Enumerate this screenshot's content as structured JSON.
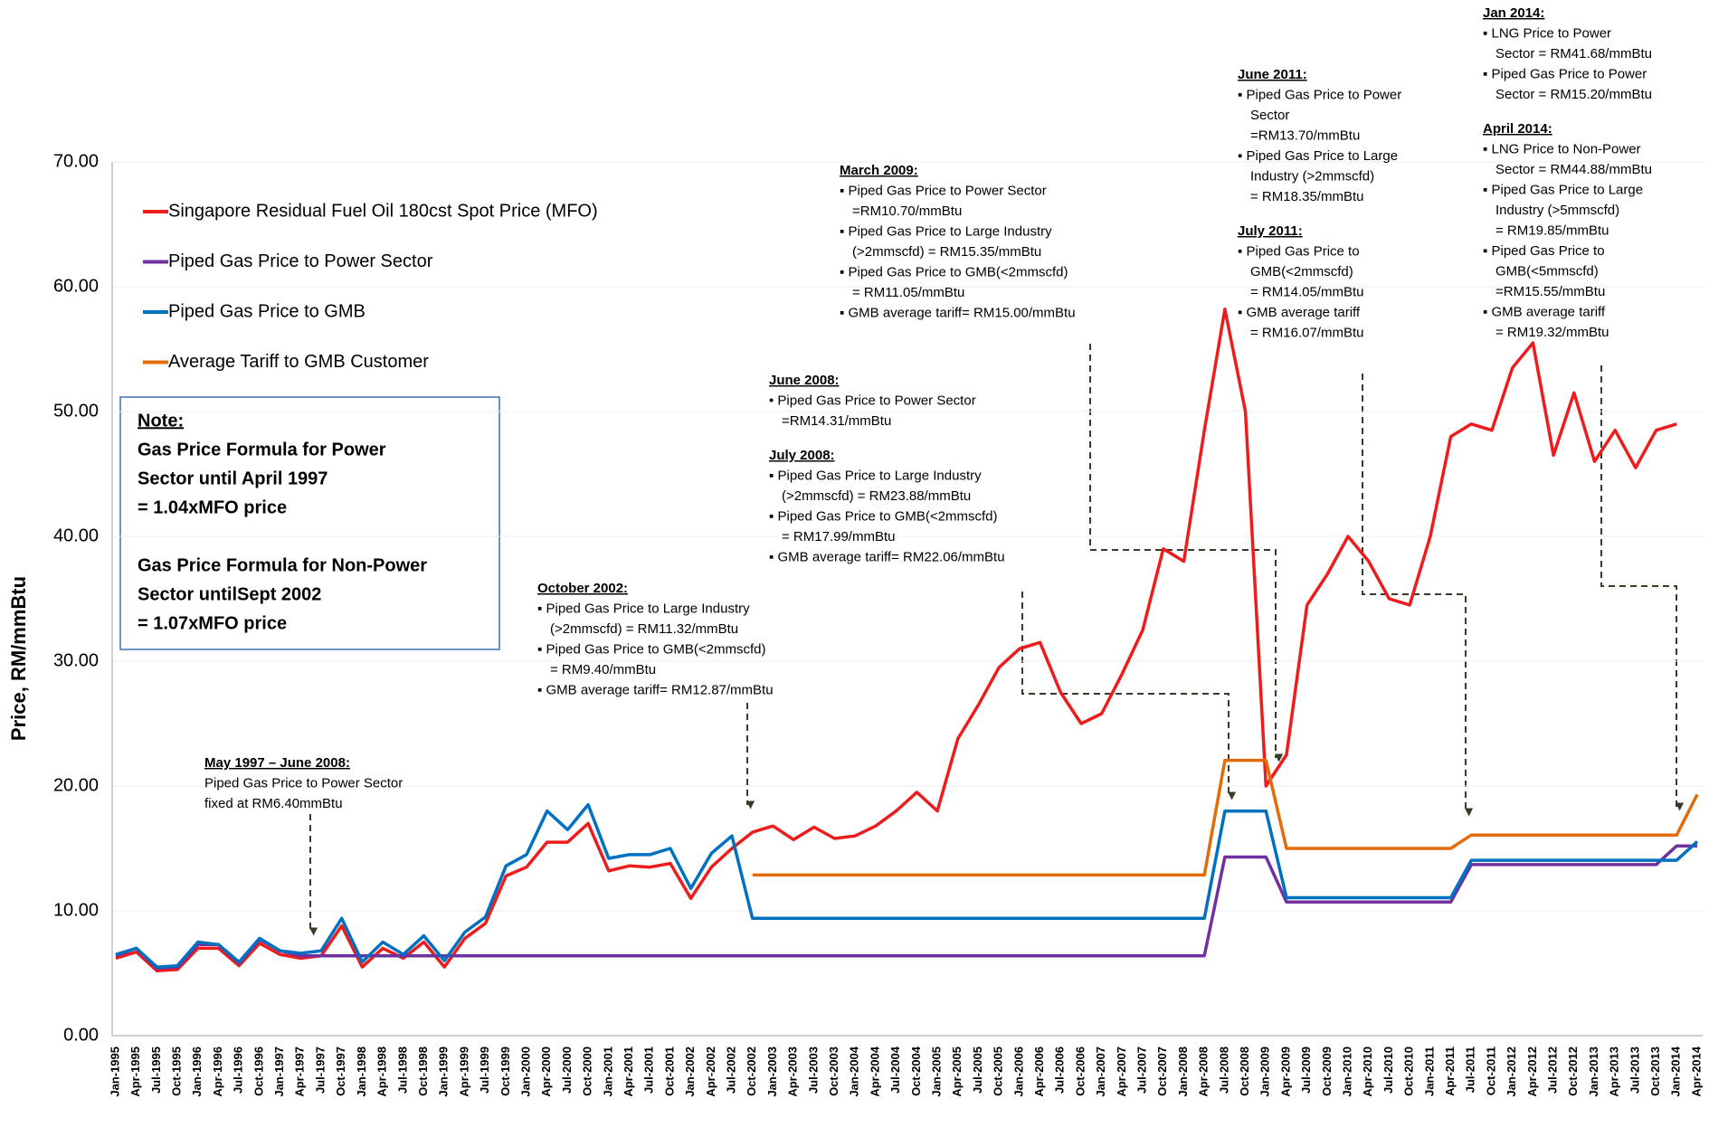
{
  "chart_data": {
    "type": "line",
    "y_label": "Price, RM/mmBtu",
    "categories": [
      "Jan-1995",
      "Apr-1995",
      "Jul-1995",
      "Oct-1995",
      "Jan-1996",
      "Apr-1996",
      "Jul-1996",
      "Oct-1996",
      "Jan-1997",
      "Apr-1997",
      "Jul-1997",
      "Oct-1997",
      "Jan-1998",
      "Apr-1998",
      "Jul-1998",
      "Oct-1998",
      "Jan-1999",
      "Apr-1999",
      "Jul-1999",
      "Oct-1999",
      "Jan-2000",
      "Apr-2000",
      "Jul-2000",
      "Oct-2000",
      "Jan-2001",
      "Apr-2001",
      "Jul-2001",
      "Oct-2001",
      "Jan-2002",
      "Apr-2002",
      "Jul-2002",
      "Oct-2002",
      "Jan-2003",
      "Apr-2003",
      "Jul-2003",
      "Oct-2003",
      "Jan-2004",
      "Apr-2004",
      "Jul-2004",
      "Oct-2004",
      "Jan-2005",
      "Apr-2005",
      "Jul-2005",
      "Oct-2005",
      "Jan-2006",
      "Apr-2006",
      "Jul-2006",
      "Oct-2006",
      "Jan-2007",
      "Apr-2007",
      "Jul-2007",
      "Oct-2007",
      "Jan-2008",
      "Apr-2008",
      "Jul-2008",
      "Oct-2008",
      "Jan-2009",
      "Apr-2009",
      "Jul-2009",
      "Oct-2009",
      "Jan-2010",
      "Apr-2010",
      "Jul-2010",
      "Oct-2010",
      "Jan-2011",
      "Apr-2011",
      "Jul-2011",
      "Oct-2011",
      "Jan-2012",
      "Apr-2012",
      "Jul-2012",
      "Oct-2012",
      "Jan-2013",
      "Apr-2013",
      "Jul-2013",
      "Oct-2013",
      "Jan-2014",
      "Apr-2014"
    ],
    "series": [
      {
        "name": "Singapore Residual Fuel Oil 180cst Spot Price (MFO)",
        "color": "#ee1c1c",
        "values": [
          6.2,
          6.7,
          5.2,
          5.3,
          7.0,
          7.0,
          5.6,
          7.4,
          6.5,
          6.2,
          6.4,
          8.8,
          5.5,
          7.0,
          6.2,
          7.5,
          5.5,
          7.8,
          9.0,
          12.8,
          13.5,
          15.5,
          15.5,
          17.0,
          13.2,
          13.6,
          13.5,
          13.8,
          11.0,
          13.5,
          15.0,
          16.3,
          16.8,
          15.7,
          16.7,
          15.8,
          16.0,
          16.8,
          18.0,
          19.5,
          18.0,
          23.8,
          26.5,
          29.5,
          31.0,
          31.5,
          27.5,
          25.0,
          25.8,
          29.0,
          32.5,
          39.0,
          38.0,
          48.5,
          58.2,
          50.0,
          20.0,
          22.5,
          34.5,
          37.0,
          40.0,
          38.0,
          35.0,
          34.5,
          40.0,
          48.0,
          49.0,
          48.5,
          53.5,
          55.5,
          46.5,
          51.5,
          46.0,
          48.5,
          45.5,
          48.5,
          49.0,
          null
        ]
      },
      {
        "name": "Piped Gas Price to Power Sector",
        "color": "#7030a0",
        "values": [
          6.4,
          7.0,
          5.4,
          5.5,
          7.3,
          7.3,
          5.8,
          7.7,
          6.8,
          6.4,
          6.4,
          6.4,
          6.4,
          6.4,
          6.4,
          6.4,
          6.4,
          6.4,
          6.4,
          6.4,
          6.4,
          6.4,
          6.4,
          6.4,
          6.4,
          6.4,
          6.4,
          6.4,
          6.4,
          6.4,
          6.4,
          6.4,
          6.4,
          6.4,
          6.4,
          6.4,
          6.4,
          6.4,
          6.4,
          6.4,
          6.4,
          6.4,
          6.4,
          6.4,
          6.4,
          6.4,
          6.4,
          6.4,
          6.4,
          6.4,
          6.4,
          6.4,
          6.4,
          6.4,
          14.31,
          14.31,
          14.31,
          10.7,
          10.7,
          10.7,
          10.7,
          10.7,
          10.7,
          10.7,
          10.7,
          10.7,
          13.7,
          13.7,
          13.7,
          13.7,
          13.7,
          13.7,
          13.7,
          13.7,
          13.7,
          13.7,
          15.2,
          15.2
        ]
      },
      {
        "name": "Piped Gas Price to GMB",
        "color": "#0070c0",
        "values": [
          6.5,
          7.0,
          5.5,
          5.6,
          7.5,
          7.3,
          5.9,
          7.8,
          6.8,
          6.6,
          6.8,
          9.4,
          5.9,
          7.5,
          6.5,
          8.0,
          6.0,
          8.3,
          9.5,
          13.6,
          14.5,
          18.0,
          16.5,
          18.5,
          14.2,
          14.5,
          14.5,
          15.0,
          11.8,
          14.6,
          16.0,
          9.4,
          9.4,
          9.4,
          9.4,
          9.4,
          9.4,
          9.4,
          9.4,
          9.4,
          9.4,
          9.4,
          9.4,
          9.4,
          9.4,
          9.4,
          9.4,
          9.4,
          9.4,
          9.4,
          9.4,
          9.4,
          9.4,
          9.4,
          17.99,
          17.99,
          17.99,
          11.05,
          11.05,
          11.05,
          11.05,
          11.05,
          11.05,
          11.05,
          11.05,
          11.05,
          14.05,
          14.05,
          14.05,
          14.05,
          14.05,
          14.05,
          14.05,
          14.05,
          14.05,
          14.05,
          14.05,
          15.55
        ]
      },
      {
        "name": "Average Tariff to GMB Customer",
        "color": "#e36c0a",
        "values": [
          null,
          null,
          null,
          null,
          null,
          null,
          null,
          null,
          null,
          null,
          null,
          null,
          null,
          null,
          null,
          null,
          null,
          null,
          null,
          null,
          null,
          null,
          null,
          null,
          null,
          null,
          null,
          null,
          null,
          null,
          null,
          12.87,
          12.87,
          12.87,
          12.87,
          12.87,
          12.87,
          12.87,
          12.87,
          12.87,
          12.87,
          12.87,
          12.87,
          12.87,
          12.87,
          12.87,
          12.87,
          12.87,
          12.87,
          12.87,
          12.87,
          12.87,
          12.87,
          12.87,
          22.06,
          22.06,
          22.06,
          15.0,
          15.0,
          15.0,
          15.0,
          15.0,
          15.0,
          15.0,
          15.0,
          15.0,
          16.07,
          16.07,
          16.07,
          16.07,
          16.07,
          16.07,
          16.07,
          16.07,
          16.07,
          16.07,
          16.07,
          19.32
        ]
      }
    ],
    "ylim": [
      0,
      70
    ],
    "yticks": [
      {
        "value": 0,
        "label": "0.00"
      },
      {
        "value": 10,
        "label": "10.00"
      },
      {
        "value": 20,
        "label": "20.00"
      },
      {
        "value": 30,
        "label": "30.00"
      },
      {
        "value": 40,
        "label": "40.00"
      },
      {
        "value": 50,
        "label": "50.00"
      },
      {
        "value": 60,
        "label": "60.00"
      },
      {
        "value": 70,
        "label": "70.00"
      }
    ],
    "grid": true,
    "legend": "upper left",
    "note": {
      "title": "Note:",
      "paragraphs": [
        [
          "Gas Price Formula for Power",
          "Sector until April 1997",
          "= 1.04xMFO price"
        ],
        [
          "Gas Price Formula for Non-Power",
          "Sector untilSept 2002",
          "= 1.07xMFO price"
        ]
      ]
    },
    "annotations": [
      {
        "heading": "May 1997 – June 2008:",
        "lines": [
          "Piped Gas Price to Power Sector",
          "fixed at RM6.40mmBtu"
        ]
      },
      {
        "heading": "October 2002:",
        "lines": [
          "▪ Piped Gas Price to Large Industry",
          "(>2mmscfd) = RM11.32/mmBtu",
          "▪ Piped Gas Price to GMB(<2mmscfd)",
          "= RM9.40/mmBtu",
          "▪ GMB average tariff= RM12.87/mmBtu"
        ]
      },
      {
        "heading": "June 2008:",
        "lines": [
          "• Piped Gas Price to Power Sector",
          "=RM14.31/mmBtu"
        ]
      },
      {
        "heading": "July 2008:",
        "lines": [
          "▪ Piped Gas Price to Large Industry",
          "(>2mmscfd) = RM23.88/mmBtu",
          "▪ Piped Gas Price to GMB(<2mmscfd)",
          "= RM17.99/mmBtu",
          "▪ GMB average tariff= RM22.06/mmBtu"
        ]
      },
      {
        "heading": "March 2009:",
        "lines": [
          "▪ Piped Gas Price to Power Sector",
          "=RM10.70/mmBtu",
          "▪ Piped Gas Price to Large Industry",
          "(>2mmscfd) = RM15.35/mmBtu",
          "▪ Piped Gas Price to GMB(<2mmscfd)",
          "= RM11.05/mmBtu",
          "▪ GMB average tariff= RM15.00/mmBtu"
        ]
      },
      {
        "heading": "June 2011:",
        "lines": [
          "▪ Piped Gas Price to Power",
          "Sector",
          "=RM13.70/mmBtu",
          "▪ Piped Gas Price to Large",
          "Industry (>2mmscfd)",
          "= RM18.35/mmBtu"
        ]
      },
      {
        "heading": "July 2011:",
        "lines": [
          "▪ Piped Gas Price to",
          "GMB(<2mmscfd)",
          "= RM14.05/mmBtu",
          "▪ GMB average tariff",
          "= RM16.07/mmBtu"
        ]
      },
      {
        "heading": "Jan 2014:",
        "lines": [
          "▪ LNG Price to Power",
          "Sector = RM41.68/mmBtu",
          "▪ Piped Gas Price to Power",
          "Sector = RM15.20/mmBtu"
        ]
      },
      {
        "heading": "April 2014:",
        "lines": [
          "▪ LNG Price to Non-Power",
          "Sector = RM44.88/mmBtu",
          "▪ Piped Gas Price to Large",
          "Industry (>5mmscfd)",
          "= RM19.85/mmBtu",
          "▪ Piped Gas Price to",
          "GMB(<5mmscfd)",
          "=RM15.55/mmBtu",
          "▪ GMB average tariff",
          "= RM19.32/mmBtu"
        ]
      }
    ]
  }
}
